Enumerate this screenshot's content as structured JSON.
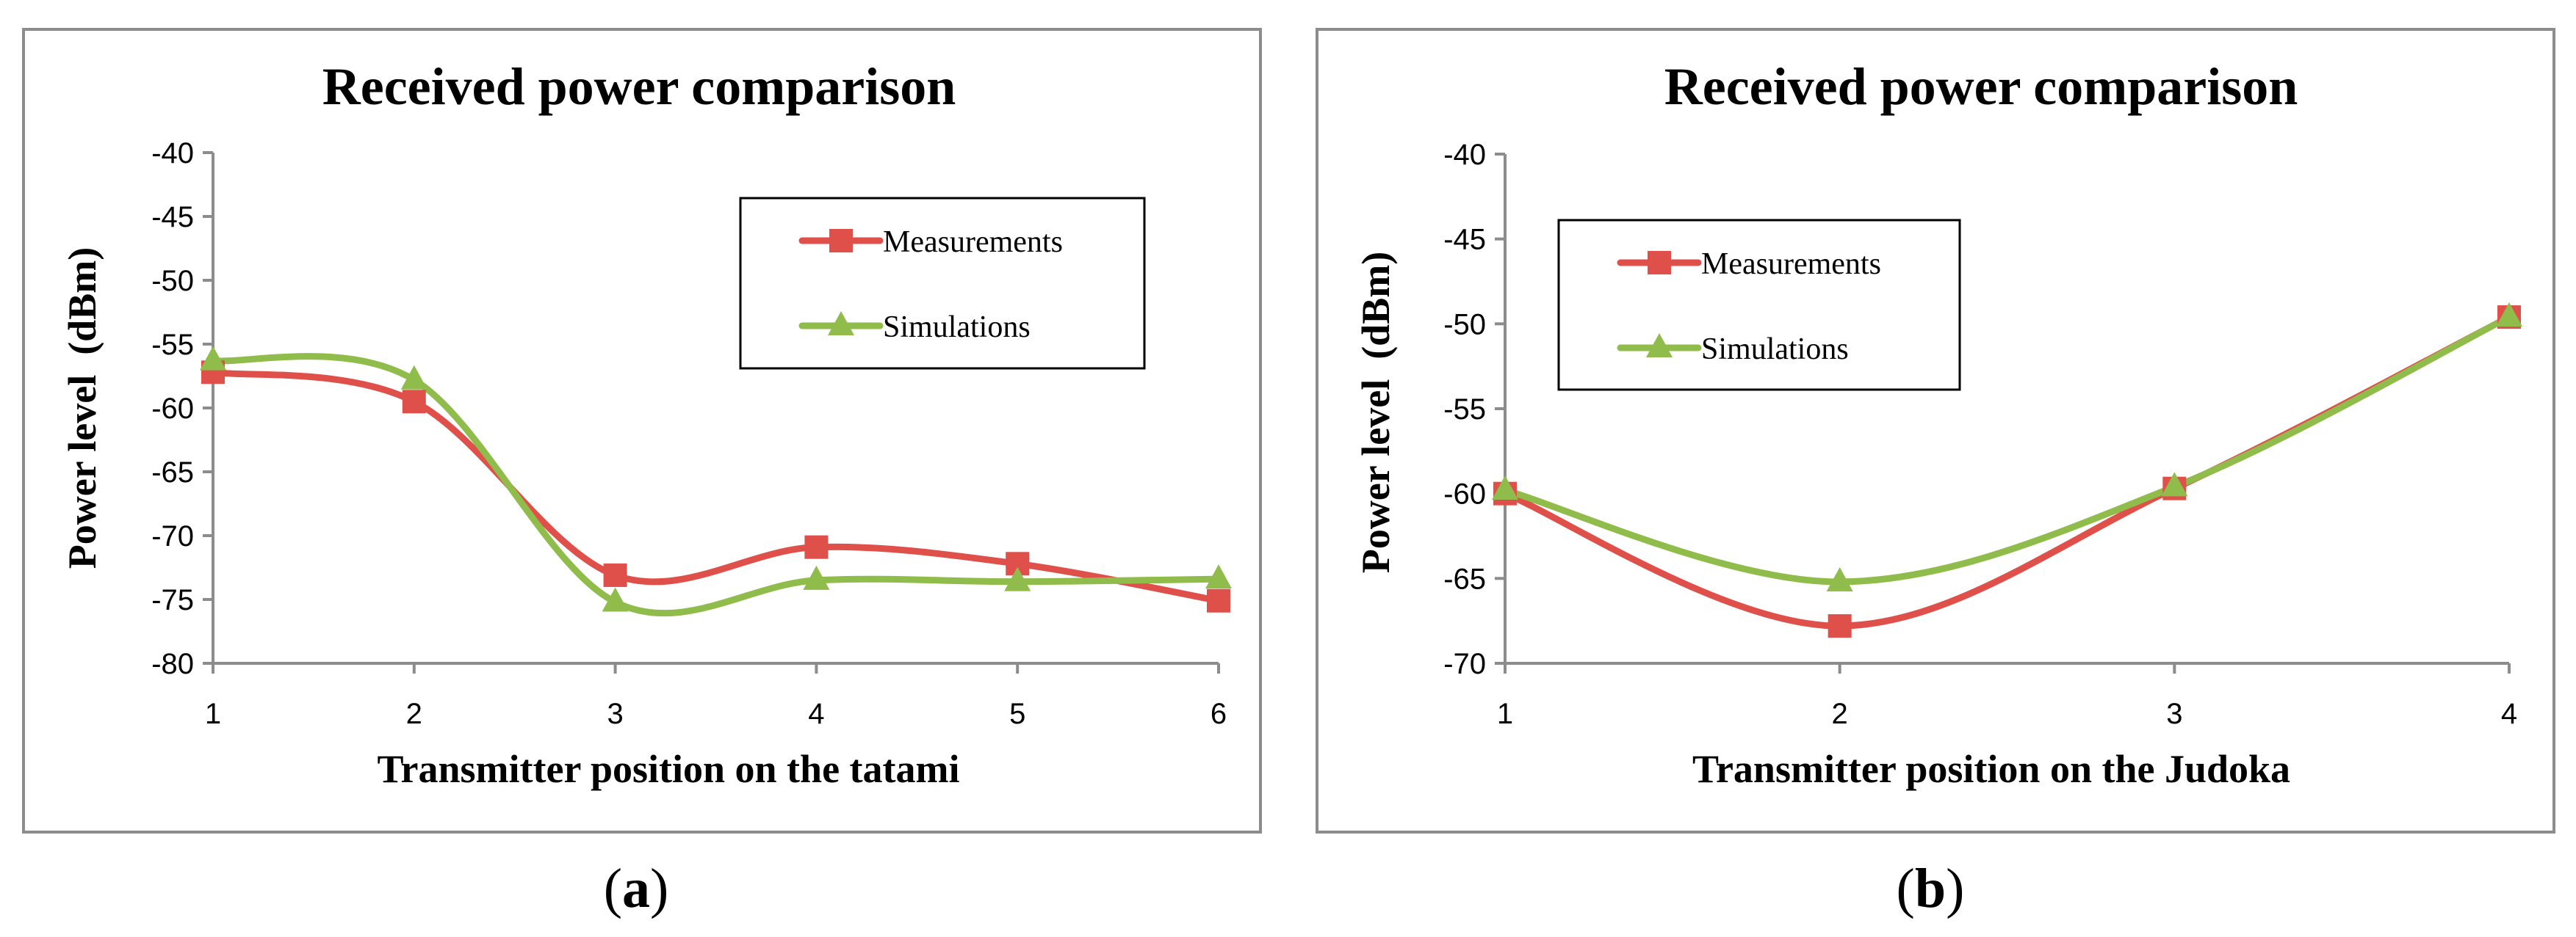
{
  "colors": {
    "measurements": "#e0504a",
    "simulations": "#8fbc4a",
    "axis": "#8c8c8c",
    "text": "#000000"
  },
  "chart_data": [
    {
      "type": "line",
      "title": "Received power comparison",
      "xlabel": "Transmitter position on the tatami",
      "ylabel": "Power level  (dBm)",
      "x": [
        1,
        2,
        3,
        4,
        5,
        6
      ],
      "ylim": [
        -80,
        -40
      ],
      "yticks": [
        -40,
        -45,
        -50,
        -55,
        -60,
        -65,
        -70,
        -75,
        -80
      ],
      "grid": false,
      "legend_position": "top-right",
      "series": [
        {
          "name": "Measurements",
          "marker": "square",
          "values": [
            -57.2,
            -59.5,
            -73.1,
            -70.9,
            -72.2,
            -75.1
          ]
        },
        {
          "name": "Simulations",
          "marker": "triangle",
          "values": [
            -56.3,
            -57.8,
            -75.2,
            -73.5,
            -73.6,
            -73.4
          ]
        }
      ]
    },
    {
      "type": "line",
      "title": "Received power comparison",
      "xlabel": "Transmitter position on the Judoka",
      "ylabel": "Power level  (dBm)",
      "x": [
        1,
        2,
        3,
        4
      ],
      "ylim": [
        -70,
        -40
      ],
      "yticks": [
        -40,
        -45,
        -50,
        -55,
        -60,
        -65,
        -70
      ],
      "grid": false,
      "legend_position": "top-left",
      "series": [
        {
          "name": "Measurements",
          "marker": "square",
          "values": [
            -60.0,
            -67.8,
            -59.7,
            -49.6
          ]
        },
        {
          "name": "Simulations",
          "marker": "triangle",
          "values": [
            -59.8,
            -65.2,
            -59.6,
            -49.6
          ]
        }
      ]
    }
  ],
  "captions": {
    "a": {
      "open": "(",
      "letter": "a",
      "close": ")"
    },
    "b": {
      "open": "(",
      "letter": "b",
      "close": ")"
    }
  }
}
